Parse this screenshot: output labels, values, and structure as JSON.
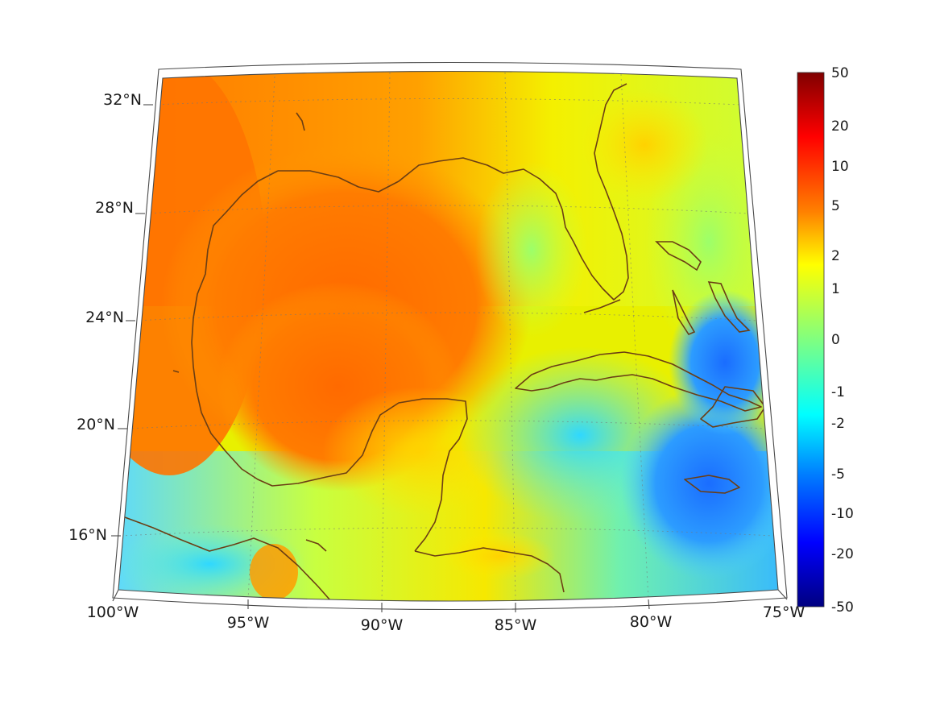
{
  "map": {
    "lon_labels": [
      "100°W",
      "95°W",
      "90°W",
      "85°W",
      "80°W",
      "75°W"
    ],
    "lat_labels": [
      "32°N",
      "28°N",
      "24°N",
      "20°N",
      "16°N"
    ],
    "extent": {
      "lon": [
        -100,
        -75
      ],
      "lat": [
        14,
        33
      ]
    },
    "projection": "conic",
    "coastline_color": "#6b3e14",
    "graticule": "dotted"
  },
  "colorbar": {
    "ticks": [
      "50",
      "20",
      "10",
      "5",
      "2",
      "1",
      "0",
      "-1",
      "-2",
      "-5",
      "-10",
      "-20",
      "-50"
    ],
    "colormap": "jet",
    "scale": "symmetric-log"
  }
}
